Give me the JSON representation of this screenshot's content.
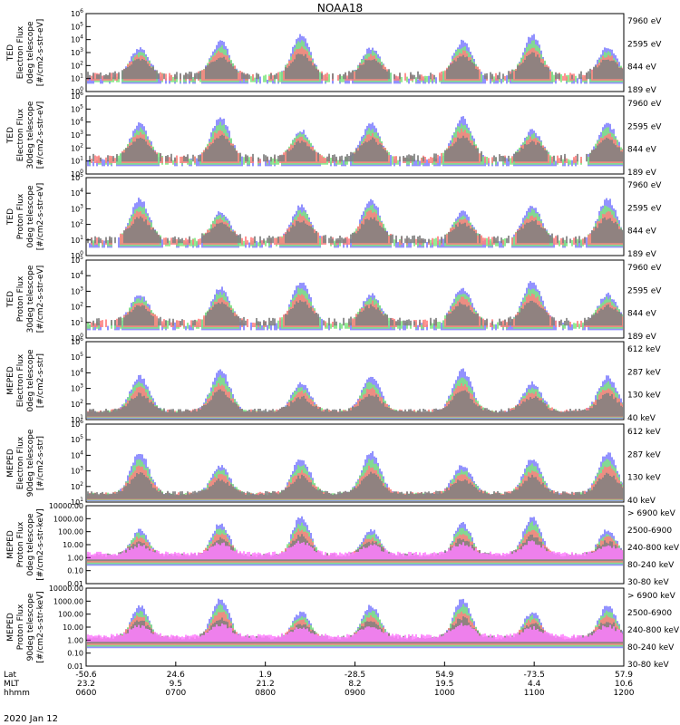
{
  "chart_data": {
    "type": "line",
    "title": "NOAA18",
    "date_label": "2020 Jan 12",
    "x_axis": {
      "row_labels": [
        "Lat",
        "MLT",
        "hhmm"
      ],
      "ticks": [
        {
          "lat": "-50.6",
          "mlt": "23.2",
          "hhmm": "0600"
        },
        {
          "lat": "24.6",
          "mlt": "9.5",
          "hhmm": "0700"
        },
        {
          "lat": "1.9",
          "mlt": "21.2",
          "hhmm": "0800"
        },
        {
          "lat": "-28.5",
          "mlt": "8.2",
          "hhmm": "0900"
        },
        {
          "lat": "54.9",
          "mlt": "19.5",
          "hhmm": "1000"
        },
        {
          "lat": "-73.5",
          "mlt": "4.4",
          "hhmm": "1100"
        },
        {
          "lat": "57.9",
          "mlt": "10.6",
          "hhmm": "1200"
        }
      ]
    },
    "panels": [
      {
        "ylabel": [
          "TED",
          "Electron Flux",
          "0deg telescope",
          "[#/cm2-s-str-eV]"
        ],
        "ytick_labels": [
          "10^0",
          "10^1",
          "10^2",
          "10^3",
          "10^4",
          "10^5",
          "10^6"
        ],
        "legend": [
          {
            "label": "7960 eV",
            "color": "#000000"
          },
          {
            "label": "2595 eV",
            "color": "#ff0000"
          },
          {
            "label": "844 eV",
            "color": "#00cc00"
          },
          {
            "label": "189 eV",
            "color": "#0000ff"
          }
        ]
      },
      {
        "ylabel": [
          "TED",
          "Electron Flux",
          "30deg telescope",
          "[#/cm2-s-str-eV]"
        ],
        "ytick_labels": [
          "10^0",
          "10^1",
          "10^2",
          "10^3",
          "10^4",
          "10^5",
          "10^6"
        ],
        "legend": [
          {
            "label": "7960 eV",
            "color": "#000000"
          },
          {
            "label": "2595 eV",
            "color": "#ff0000"
          },
          {
            "label": "844 eV",
            "color": "#00cc00"
          },
          {
            "label": "189 eV",
            "color": "#0000ff"
          }
        ]
      },
      {
        "ylabel": [
          "TED",
          "Proton Flux",
          "0deg telescope",
          "[#/cm2-s-str-eV]"
        ],
        "ytick_labels": [
          "10^0",
          "10^1",
          "10^2",
          "10^3",
          "10^4",
          "10^5"
        ],
        "legend": [
          {
            "label": "7960 eV",
            "color": "#000000"
          },
          {
            "label": "2595 eV",
            "color": "#ff0000"
          },
          {
            "label": "844 eV",
            "color": "#00cc00"
          },
          {
            "label": "189 eV",
            "color": "#0000ff"
          }
        ]
      },
      {
        "ylabel": [
          "TED",
          "Proton Flux",
          "30deg telescope",
          "[#/cm2-s-str-eV]"
        ],
        "ytick_labels": [
          "10^0",
          "10^1",
          "10^2",
          "10^3",
          "10^4",
          "10^5"
        ],
        "legend": [
          {
            "label": "7960 eV",
            "color": "#000000"
          },
          {
            "label": "2595 eV",
            "color": "#ff0000"
          },
          {
            "label": "844 eV",
            "color": "#00cc00"
          },
          {
            "label": "189 eV",
            "color": "#0000ff"
          }
        ]
      },
      {
        "ylabel": [
          "MEPED",
          "Electron Flux",
          "0deg telescope",
          "[#/cm2-s-str]"
        ],
        "ytick_labels": [
          "10^1",
          "10^2",
          "10^3",
          "10^4",
          "10^5",
          "10^6"
        ],
        "legend": [
          {
            "label": "612 keV",
            "color": "#000000"
          },
          {
            "label": "287 keV",
            "color": "#ff0000"
          },
          {
            "label": "130 keV",
            "color": "#00cc00"
          },
          {
            "label": "40 keV",
            "color": "#0000ff"
          }
        ]
      },
      {
        "ylabel": [
          "MEPED",
          "Electron Flux",
          "90deg telescope",
          "[#/cm2-s-str]"
        ],
        "ytick_labels": [
          "10^1",
          "10^2",
          "10^3",
          "10^4",
          "10^5",
          "10^6"
        ],
        "legend": [
          {
            "label": "612 keV",
            "color": "#000000"
          },
          {
            "label": "287 keV",
            "color": "#ff0000"
          },
          {
            "label": "130 keV",
            "color": "#00cc00"
          },
          {
            "label": "40 keV",
            "color": "#0000ff"
          }
        ]
      },
      {
        "ylabel": [
          "MEPED",
          "Proton Flux",
          "0deg telescope",
          "[#/cm2-s-str-keV]"
        ],
        "ytick_labels": [
          "0.01",
          "0.10",
          "1.00",
          "10.00",
          "100.00",
          "1000.00",
          "10000.00"
        ],
        "legend": [
          {
            "label": "> 6900 keV",
            "color": "#ff00ff"
          },
          {
            "label": "2500-6900",
            "color": "#000000"
          },
          {
            "label": "240-800 keV",
            "color": "#ff0000"
          },
          {
            "label": "80-240 keV",
            "color": "#00cc00"
          },
          {
            "label": "30-80 keV",
            "color": "#0000ff"
          }
        ]
      },
      {
        "ylabel": [
          "MEPED",
          "Proton Flux",
          "90deg telescope",
          "[#/cm2-s-str-keV]"
        ],
        "ytick_labels": [
          "0.01",
          "0.10",
          "1.00",
          "10.00",
          "100.00",
          "1000.00",
          "10000.00"
        ],
        "legend": [
          {
            "label": "> 6900 keV",
            "color": "#ff00ff"
          },
          {
            "label": "2500-6900",
            "color": "#000000"
          },
          {
            "label": "240-800 keV",
            "color": "#ff0000"
          },
          {
            "label": "80-240 keV",
            "color": "#00cc00"
          },
          {
            "label": "30-80 keV",
            "color": "#0000ff"
          }
        ]
      }
    ]
  }
}
